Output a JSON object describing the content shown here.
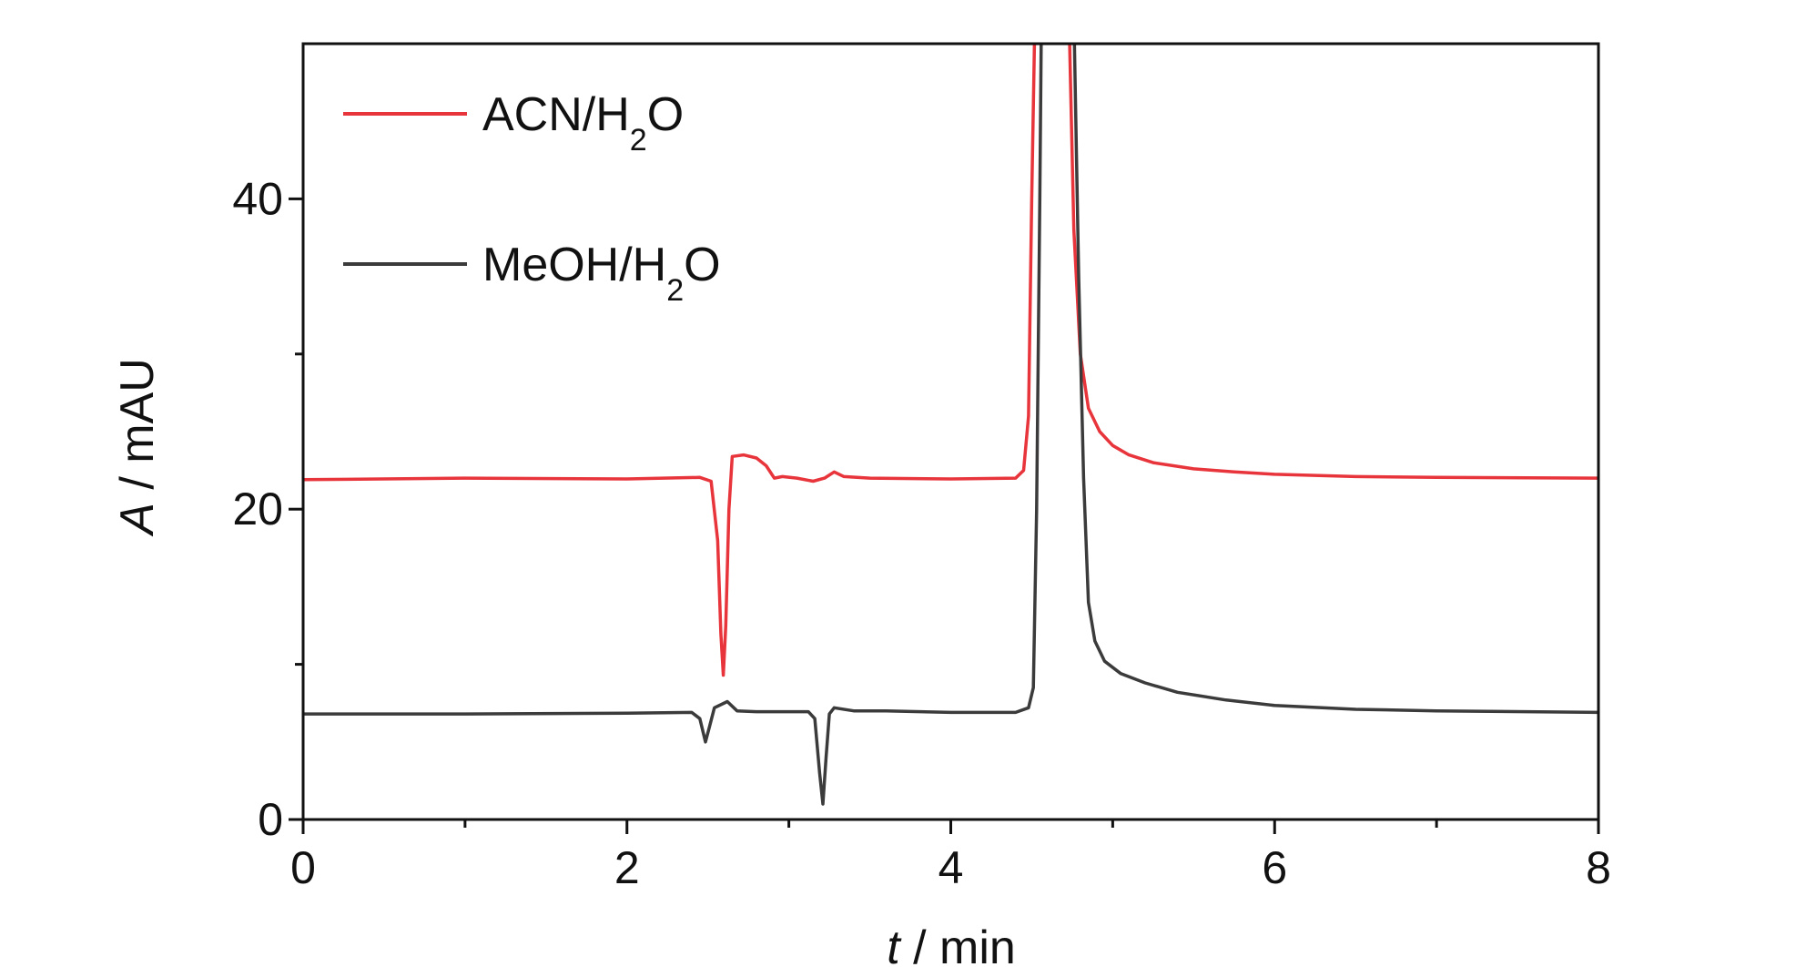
{
  "chart_data": {
    "type": "line",
    "xlabel_italic": "t",
    "xlabel_rest": " / min",
    "ylabel_italic": "A",
    "ylabel_rest": " / mAU",
    "xlim": [
      0,
      8
    ],
    "ylim": [
      0,
      50
    ],
    "x_ticks": [
      0,
      2,
      4,
      6,
      8
    ],
    "x_tick_labels": [
      "0",
      "2",
      "4",
      "6",
      "8"
    ],
    "x_minor_ticks": [
      1,
      3,
      5,
      7
    ],
    "y_ticks": [
      0,
      20,
      40
    ],
    "y_tick_labels": [
      "0",
      "20",
      "40"
    ],
    "y_minor_ticks": [
      10,
      30
    ],
    "grid": false,
    "legend_position": "top-left",
    "series": [
      {
        "name_main": "ACN/H",
        "name_sub": "2",
        "name_end": "O",
        "color": "#e8343b",
        "points": [
          [
            0,
            21.9
          ],
          [
            1.0,
            22.0
          ],
          [
            2.0,
            21.95
          ],
          [
            2.45,
            22.05
          ],
          [
            2.52,
            21.8
          ],
          [
            2.56,
            18.0
          ],
          [
            2.58,
            12.0
          ],
          [
            2.595,
            9.3
          ],
          [
            2.61,
            12.5
          ],
          [
            2.63,
            20.0
          ],
          [
            2.65,
            23.4
          ],
          [
            2.72,
            23.5
          ],
          [
            2.8,
            23.3
          ],
          [
            2.86,
            22.8
          ],
          [
            2.91,
            22.0
          ],
          [
            2.96,
            22.1
          ],
          [
            3.05,
            22.0
          ],
          [
            3.15,
            21.8
          ],
          [
            3.22,
            22.0
          ],
          [
            3.28,
            22.4
          ],
          [
            3.34,
            22.1
          ],
          [
            3.5,
            22.0
          ],
          [
            4.0,
            21.95
          ],
          [
            4.4,
            22.0
          ],
          [
            4.45,
            22.5
          ],
          [
            4.48,
            26.0
          ],
          [
            4.5,
            40.0
          ],
          [
            4.52,
            52.0
          ],
          [
            4.73,
            52.0
          ],
          [
            4.76,
            38.0
          ],
          [
            4.8,
            30.0
          ],
          [
            4.85,
            26.5
          ],
          [
            4.92,
            25.0
          ],
          [
            5.0,
            24.1
          ],
          [
            5.1,
            23.5
          ],
          [
            5.25,
            23.0
          ],
          [
            5.5,
            22.6
          ],
          [
            5.75,
            22.4
          ],
          [
            6.0,
            22.25
          ],
          [
            6.5,
            22.1
          ],
          [
            7.0,
            22.05
          ],
          [
            8.0,
            22.0
          ]
        ]
      },
      {
        "name_main": "MeOH/H",
        "name_sub": "2",
        "name_end": "O",
        "color": "#3b3b3b",
        "points": [
          [
            0,
            6.8
          ],
          [
            1.0,
            6.8
          ],
          [
            2.0,
            6.85
          ],
          [
            2.4,
            6.9
          ],
          [
            2.45,
            6.5
          ],
          [
            2.485,
            5.0
          ],
          [
            2.51,
            6.0
          ],
          [
            2.54,
            7.2
          ],
          [
            2.62,
            7.6
          ],
          [
            2.68,
            7.0
          ],
          [
            2.8,
            6.95
          ],
          [
            3.05,
            6.95
          ],
          [
            3.12,
            6.95
          ],
          [
            3.16,
            6.5
          ],
          [
            3.19,
            3.0
          ],
          [
            3.21,
            1.0
          ],
          [
            3.23,
            4.0
          ],
          [
            3.25,
            6.8
          ],
          [
            3.28,
            7.2
          ],
          [
            3.4,
            7.0
          ],
          [
            3.6,
            7.0
          ],
          [
            4.0,
            6.9
          ],
          [
            4.4,
            6.9
          ],
          [
            4.48,
            7.2
          ],
          [
            4.51,
            8.5
          ],
          [
            4.53,
            20.0
          ],
          [
            4.55,
            40.0
          ],
          [
            4.56,
            52.0
          ],
          [
            4.76,
            52.0
          ],
          [
            4.79,
            35.0
          ],
          [
            4.82,
            22.0
          ],
          [
            4.85,
            14.0
          ],
          [
            4.89,
            11.5
          ],
          [
            4.95,
            10.2
          ],
          [
            5.05,
            9.4
          ],
          [
            5.2,
            8.8
          ],
          [
            5.4,
            8.2
          ],
          [
            5.7,
            7.7
          ],
          [
            6.0,
            7.35
          ],
          [
            6.5,
            7.1
          ],
          [
            7.0,
            7.0
          ],
          [
            8.0,
            6.9
          ]
        ]
      }
    ]
  }
}
